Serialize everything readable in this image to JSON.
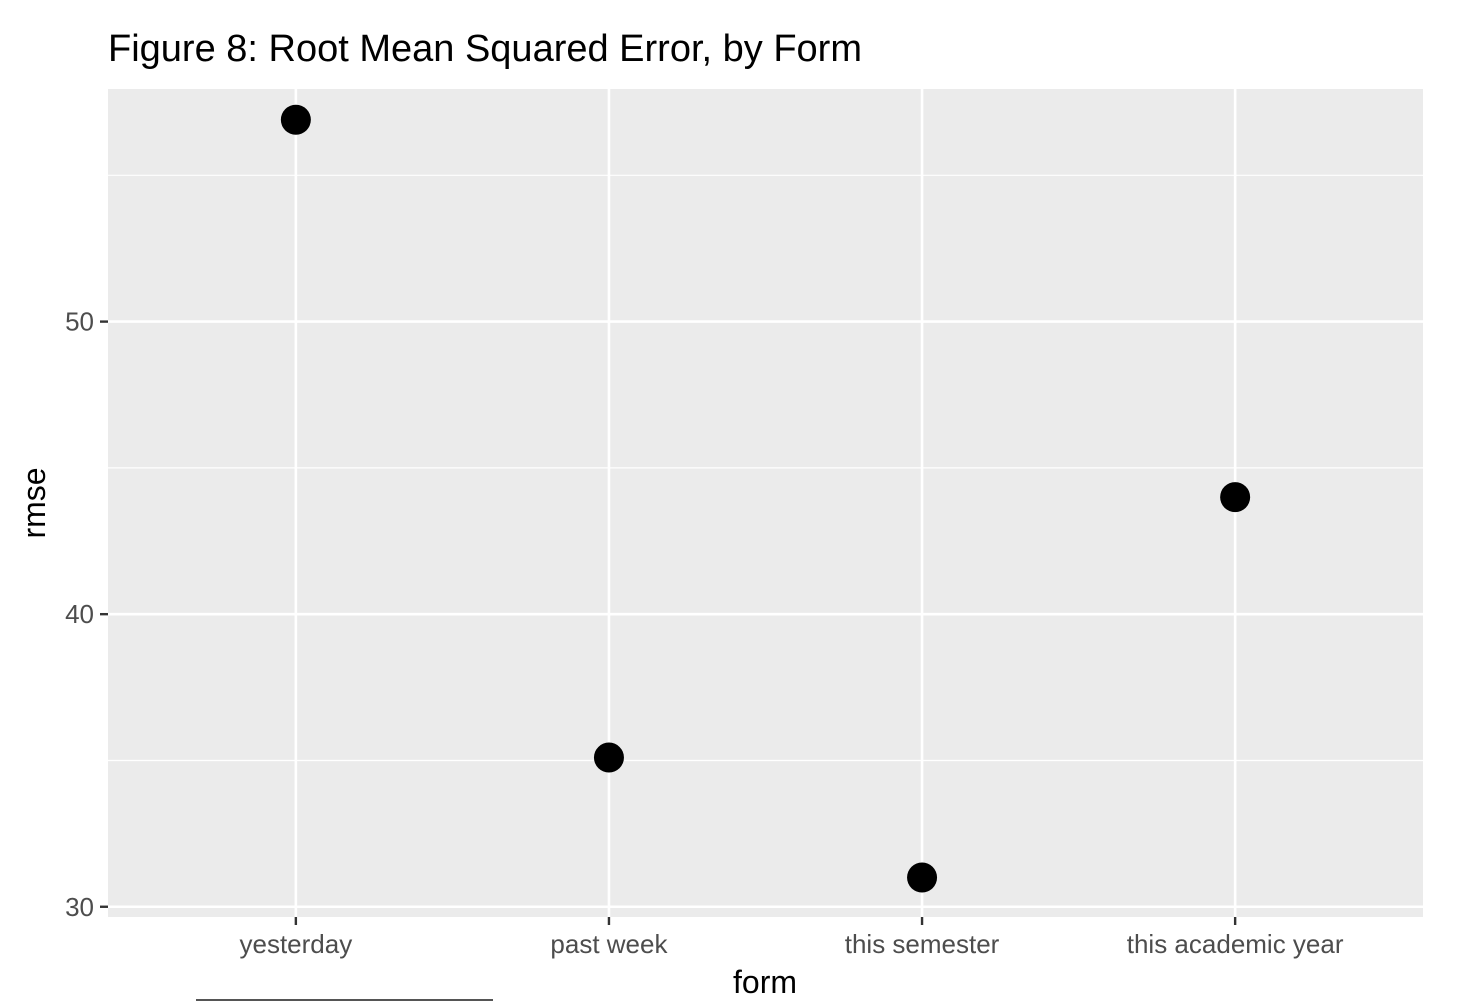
{
  "chart_data": {
    "type": "scatter",
    "title": "Figure 8: Root Mean Squared Error, by Form",
    "xlabel": "form",
    "ylabel": "rmse",
    "categories": [
      "yesterday",
      "past week",
      "this semester",
      "this academic year"
    ],
    "values": [
      56.9,
      35.1,
      31.0,
      44.0
    ],
    "yticks": [
      30,
      40,
      50
    ],
    "ylim": [
      29.65,
      57.95
    ],
    "grid": true,
    "legend": "none",
    "colors": {
      "panel": "#ebebeb",
      "grid": "#ffffff",
      "point": "#000000"
    }
  }
}
